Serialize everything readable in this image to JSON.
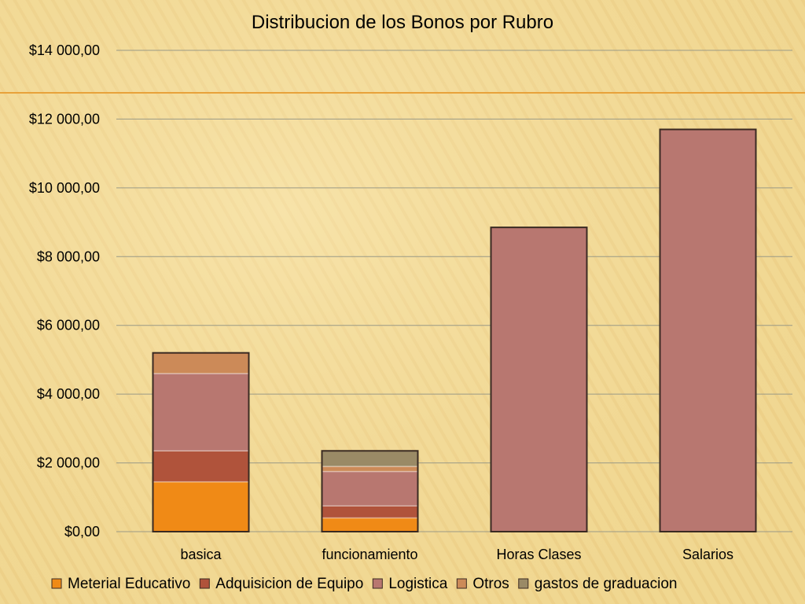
{
  "colors": {
    "background": "#f3dc97",
    "accent_line": "#e8a23a",
    "grid": "#9a9a86"
  },
  "chart_data": {
    "type": "bar",
    "stacked": true,
    "title": "Distribucion de los Bonos por Rubro",
    "xlabel": "",
    "ylabel": "",
    "ylim": [
      0,
      14000
    ],
    "ytick_values": [
      0,
      2000,
      4000,
      6000,
      8000,
      10000,
      12000,
      14000
    ],
    "ytick_labels": [
      "$0,00",
      "$2 000,00",
      "$4 000,00",
      "$6 000,00",
      "$8 000,00",
      "$10 000,00",
      "$12 000,00",
      "$14 000,00"
    ],
    "categories": [
      "basica",
      "funcionamiento",
      "Horas Clases",
      "Salarios"
    ],
    "grid": true,
    "legend_position": "bottom",
    "series": [
      {
        "name": "Meterial Educativo",
        "color": "#f08a16",
        "values": [
          1450,
          400,
          0,
          0
        ]
      },
      {
        "name": "Adquisicion de Equipo",
        "color": "#b0533b",
        "values": [
          900,
          350,
          0,
          0
        ]
      },
      {
        "name": "Logistica",
        "color": "#b87770",
        "values": [
          2250,
          1000,
          8850,
          11700
        ]
      },
      {
        "name": "Otros",
        "color": "#cc8a58",
        "values": [
          600,
          150,
          0,
          0
        ]
      },
      {
        "name": "gastos de graduacion",
        "color": "#9a8a66",
        "values": [
          0,
          450,
          0,
          0
        ]
      }
    ]
  }
}
